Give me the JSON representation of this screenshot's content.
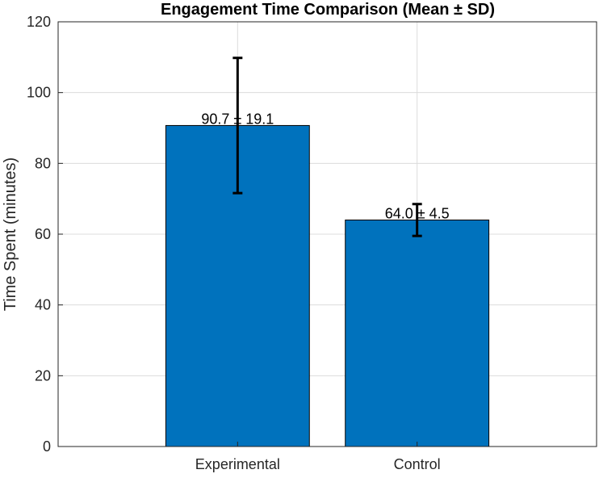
{
  "chart_data": {
    "type": "bar",
    "title": "Engagement Time Comparison (Mean ± SD)",
    "xlabel": "",
    "ylabel": "Time Spent (minutes)",
    "ylim": [
      0,
      120
    ],
    "yticks": [
      0,
      20,
      40,
      60,
      80,
      100,
      120
    ],
    "categories": [
      "Experimental",
      "Control"
    ],
    "values": [
      90.7,
      64.0
    ],
    "errors": [
      19.1,
      4.5
    ],
    "data_labels": [
      "90.7 ± 19.1",
      "64.0 ± 4.5"
    ],
    "grid": true,
    "legend": "none",
    "colors": {
      "bar": "#0072BD",
      "bar_edge": "#000000",
      "error_bar": "#000000",
      "grid": "#dcdcdc",
      "axis": "#262626"
    }
  }
}
